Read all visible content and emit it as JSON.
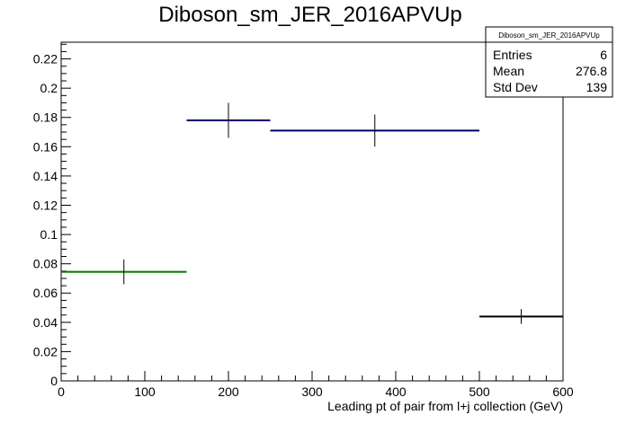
{
  "chart_data": {
    "type": "histogram",
    "title": "Diboson_sm_JER_2016APVUp",
    "xlabel": "Leading pt of pair from l+j collection (GeV)",
    "ylabel": "",
    "xlim": [
      0,
      600
    ],
    "ylim": [
      0,
      0.2314
    ],
    "x_ticks": [
      0,
      100,
      200,
      300,
      400,
      500,
      600
    ],
    "x_tick_labels": [
      "0",
      "100",
      "200",
      "300",
      "400",
      "500",
      "600"
    ],
    "y_ticks": [
      0,
      0.02,
      0.04,
      0.06,
      0.08,
      0.1,
      0.12,
      0.14,
      0.16,
      0.18,
      0.2,
      0.22
    ],
    "y_tick_labels": [
      "0",
      "0.02",
      "0.04",
      "0.06",
      "0.08",
      "0.1",
      "0.12",
      "0.14",
      "0.16",
      "0.18",
      "0.2",
      "0.22"
    ],
    "grid": false,
    "bins": [
      {
        "x_low": 0,
        "x_high": 150,
        "x_center": 75,
        "value": 0.0745,
        "error": 0.0085,
        "color": "#007700"
      },
      {
        "x_low": 150,
        "x_high": 250,
        "x_center": 200,
        "value": 0.178,
        "error": 0.012,
        "color": "#000066"
      },
      {
        "x_low": 250,
        "x_high": 500,
        "x_center": 375,
        "value": 0.171,
        "error": 0.011,
        "color": "#000066"
      },
      {
        "x_low": 500,
        "x_high": 600,
        "x_center": 550,
        "value": 0.044,
        "error": 0.005,
        "color": "#000000"
      }
    ],
    "stats": {
      "name": "Diboson_sm_JER_2016APVUp",
      "rows": [
        {
          "label": "Entries",
          "value": "6"
        },
        {
          "label": "Mean",
          "value": "276.8"
        },
        {
          "label": "Std Dev",
          "value": "139"
        }
      ]
    }
  }
}
